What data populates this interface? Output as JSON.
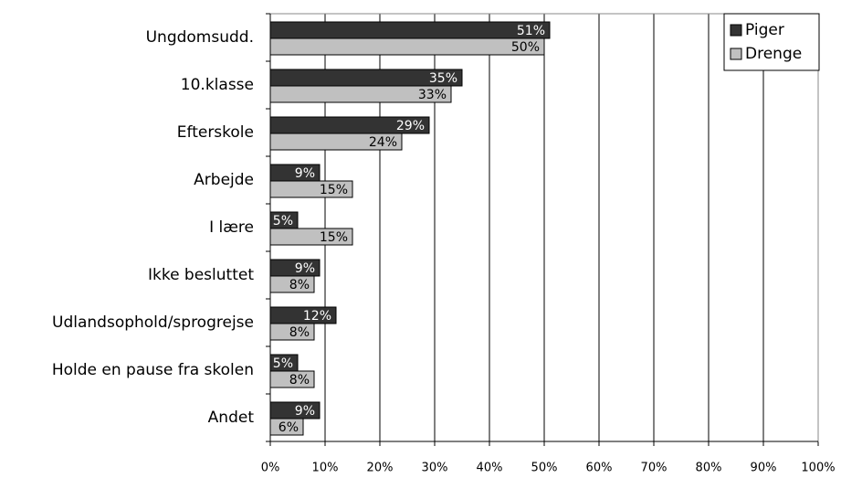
{
  "chart_data": {
    "type": "bar",
    "orientation": "horizontal",
    "categories": [
      "Ungdomsudd.",
      "10.klasse",
      "Efterskole",
      "Arbejde",
      "I lære",
      "Ikke besluttet",
      "Udlandsophold/sprogrejse",
      "Holde en pause fra skolen",
      "Andet"
    ],
    "series": [
      {
        "name": "Piger",
        "color": "#333333",
        "values": [
          51,
          35,
          29,
          9,
          5,
          9,
          12,
          5,
          9
        ],
        "value_labels": [
          "51%",
          "35%",
          "29%",
          "9%",
          "5%",
          "9%",
          "12%",
          "5%",
          "9%"
        ]
      },
      {
        "name": "Drenge",
        "color": "#c0c0c0",
        "values": [
          50,
          33,
          24,
          15,
          15,
          8,
          8,
          8,
          6
        ],
        "value_labels": [
          "50%",
          "33%",
          "24%",
          "15%",
          "15%",
          "8%",
          "8%",
          "8%",
          "6%"
        ]
      }
    ],
    "xlim": [
      0,
      100
    ],
    "xticks": [
      {
        "value": 0,
        "label": "0%"
      },
      {
        "value": 10,
        "label": "10%"
      },
      {
        "value": 20,
        "label": "20%"
      },
      {
        "value": 30,
        "label": "30%"
      },
      {
        "value": 40,
        "label": "40%"
      },
      {
        "value": 50,
        "label": "50%"
      },
      {
        "value": 60,
        "label": "60%"
      },
      {
        "value": 70,
        "label": "70%"
      },
      {
        "value": 80,
        "label": "80%"
      },
      {
        "value": 90,
        "label": "90%"
      },
      {
        "value": 100,
        "label": "100%"
      }
    ],
    "grid": true,
    "legend": "top-right"
  }
}
